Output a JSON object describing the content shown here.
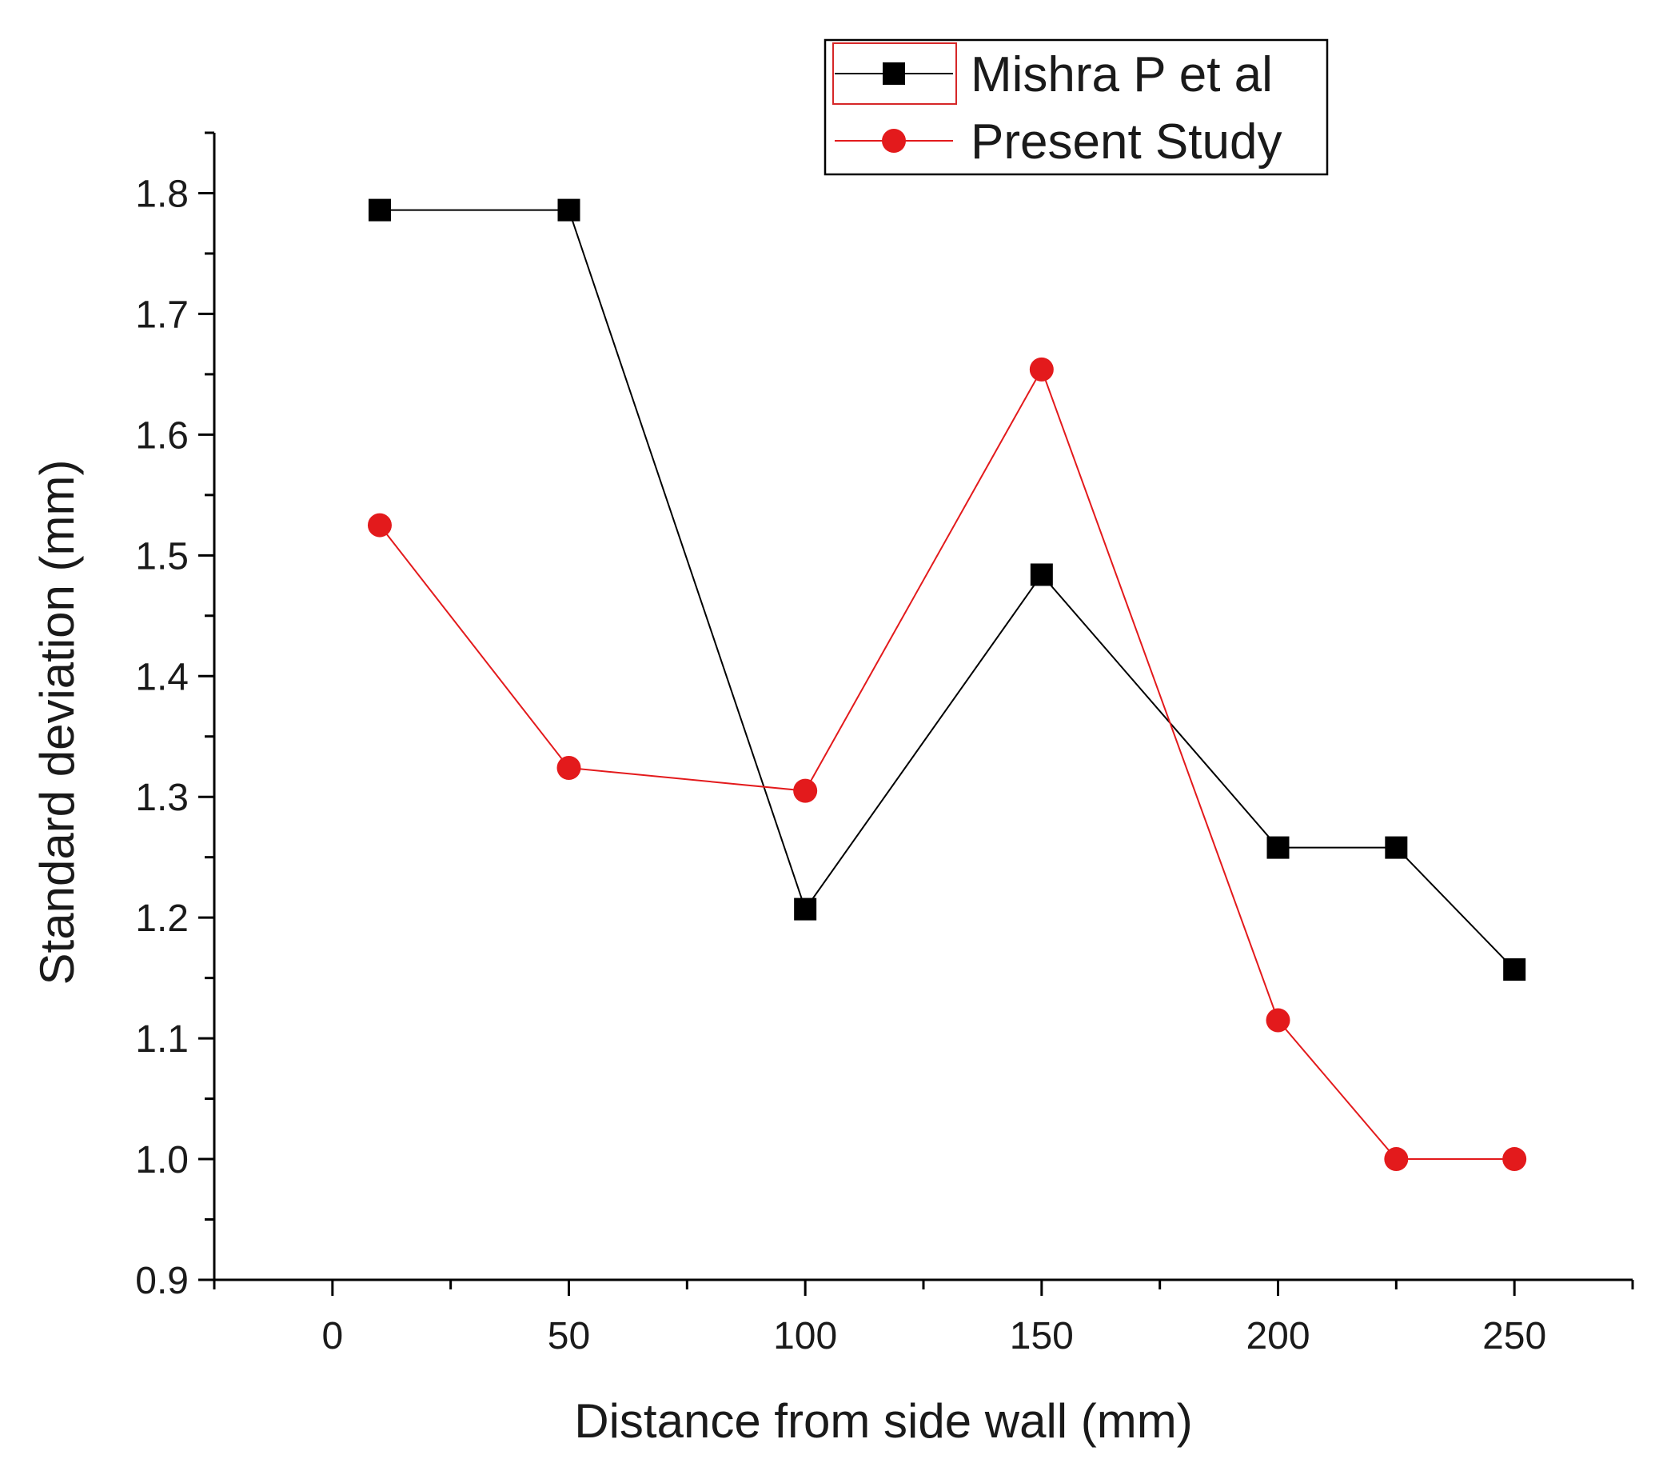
{
  "chart_data": {
    "type": "line",
    "title": "",
    "xlabel": "Distance from side wall (mm)",
    "ylabel": "Standard deviation (mm)",
    "xlim": [
      -25,
      275
    ],
    "ylim": [
      0.9,
      1.85
    ],
    "xticks": [
      0,
      50,
      100,
      150,
      200,
      250
    ],
    "xtick_labels": [
      "0",
      "50",
      "100",
      "150",
      "200",
      "250"
    ],
    "yticks": [
      0.9,
      1.0,
      1.1,
      1.2,
      1.3,
      1.4,
      1.5,
      1.6,
      1.7,
      1.8
    ],
    "ytick_labels": [
      "0.9",
      "1.0",
      "1.1",
      "1.2",
      "1.3",
      "1.4",
      "1.5",
      "1.6",
      "1.7",
      "1.8"
    ],
    "grid": false,
    "legend_position": "top-right",
    "series": [
      {
        "name": "Mishra P et al",
        "color": "#000000",
        "marker": "square",
        "x": [
          10,
          50,
          100,
          150,
          200,
          225,
          250
        ],
        "y": [
          1.786,
          1.786,
          1.207,
          1.484,
          1.258,
          1.258,
          1.157
        ]
      },
      {
        "name": "Present Study",
        "color": "#e31a1c",
        "marker": "circle",
        "x": [
          10,
          50,
          100,
          150,
          200,
          225,
          250
        ],
        "y": [
          1.525,
          1.324,
          1.305,
          1.654,
          1.115,
          1.0,
          1.0
        ]
      }
    ]
  }
}
